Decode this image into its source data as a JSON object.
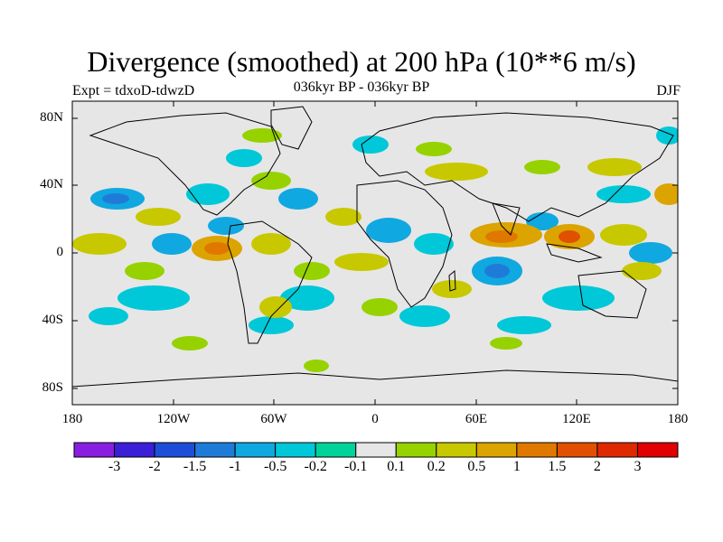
{
  "title": "Divergence (smoothed) at 200 hPa (10**6 m/s)",
  "experiment": "Expt = tdxoD-tdwzD",
  "period": "036kyr BP - 036kyr BP",
  "season": "DJF",
  "map": {
    "projection": "cylindrical equidistant",
    "lon_range": [
      -180,
      180
    ],
    "lat_range": [
      -90,
      90
    ],
    "lat_ticks": [
      "80N",
      "40N",
      "0",
      "40S",
      "80S"
    ],
    "lon_ticks": [
      "180",
      "120W",
      "60W",
      "0",
      "60E",
      "120E",
      "180"
    ],
    "background_color": "#e6e6e6",
    "field_description": "alternating positive/negative divergence blobs concentrated in the tropics and mid-latitudes; near-zero over high latitudes"
  },
  "colorbar": {
    "labels": [
      "-3",
      "-2",
      "-1.5",
      "-1",
      "-0.5",
      "-0.2",
      "-0.1",
      "0.1",
      "0.2",
      "0.5",
      "1",
      "1.5",
      "2",
      "3"
    ],
    "colors": [
      "#8a1ee0",
      "#3a1ed8",
      "#1e4ed8",
      "#1e7cd8",
      "#10a8e0",
      "#00c8d8",
      "#00d29a",
      "#e6e6e6",
      "#96d200",
      "#c8c800",
      "#dca400",
      "#e07800",
      "#e05000",
      "#e02800",
      "#e00000"
    ]
  }
}
